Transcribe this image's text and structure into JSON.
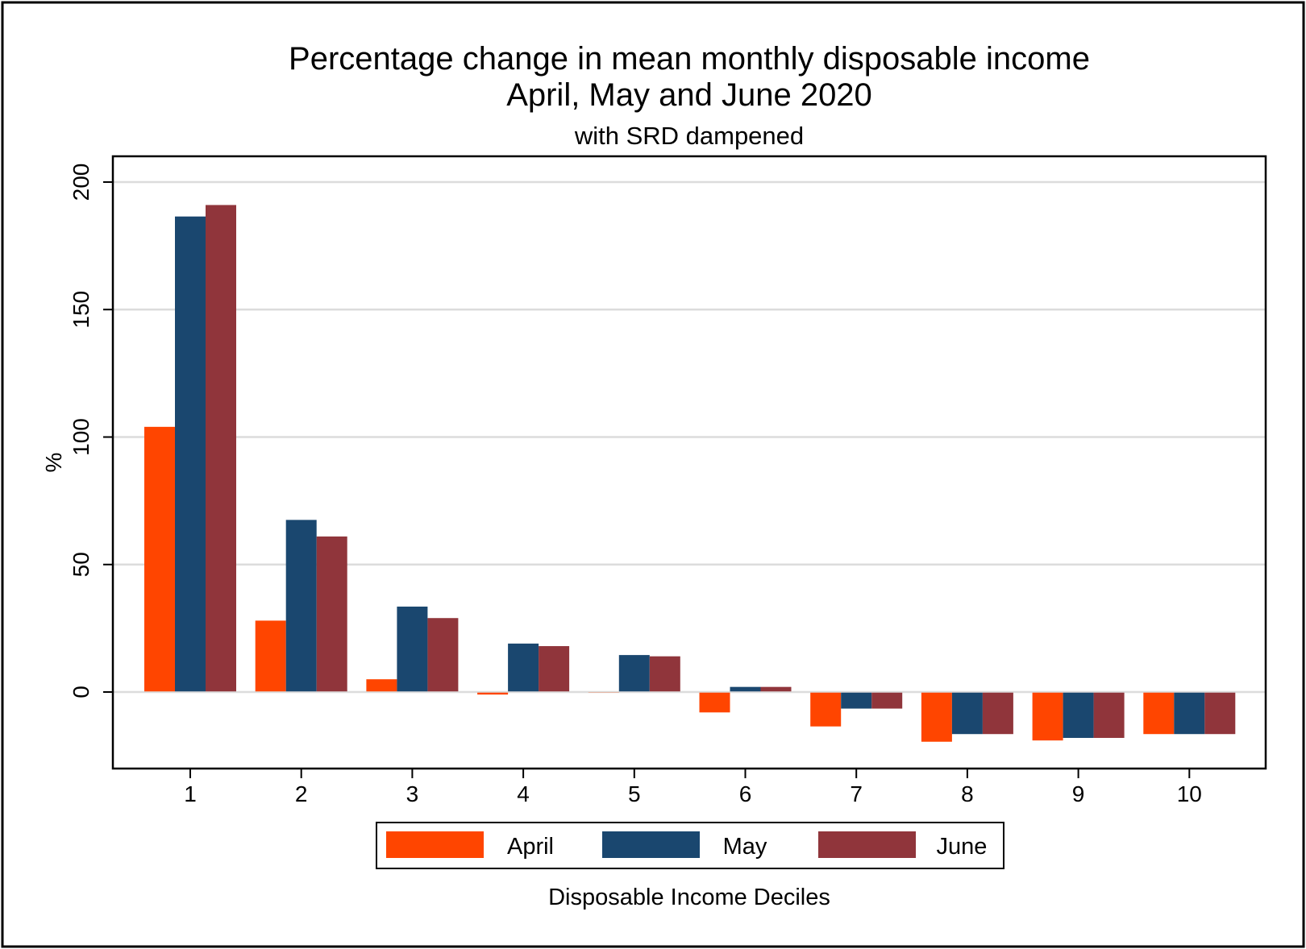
{
  "chart_data": {
    "type": "bar",
    "title": "Percentage change in mean monthly disposable income",
    "title_line2": "April, May and June 2020",
    "subtitle": "with SRD dampened",
    "xlabel": "Disposable Income Deciles",
    "ylabel": "%",
    "categories": [
      "1",
      "2",
      "3",
      "4",
      "5",
      "6",
      "7",
      "8",
      "9",
      "10"
    ],
    "series": [
      {
        "name": "April",
        "color": "#ff4500",
        "values": [
          104,
          28,
          5,
          -1,
          -0.3,
          -8,
          -13.5,
          -19.5,
          -19,
          -16.5
        ]
      },
      {
        "name": "May",
        "color": "#1a476f",
        "values": [
          186.5,
          67.5,
          33.5,
          19,
          14.5,
          2,
          -6.5,
          -16.5,
          -18,
          -16.5
        ]
      },
      {
        "name": "June",
        "color": "#90353b",
        "values": [
          191,
          61,
          29,
          18,
          14,
          2,
          -6.5,
          -16.5,
          -18,
          -16.5
        ]
      }
    ],
    "ylim": [
      -30,
      210
    ],
    "yticks": [
      0,
      50,
      100,
      150,
      200
    ],
    "ytick_labels": [
      "0",
      "50",
      "100",
      "150",
      "200"
    ],
    "grid": true,
    "legend": "bottom-center"
  }
}
